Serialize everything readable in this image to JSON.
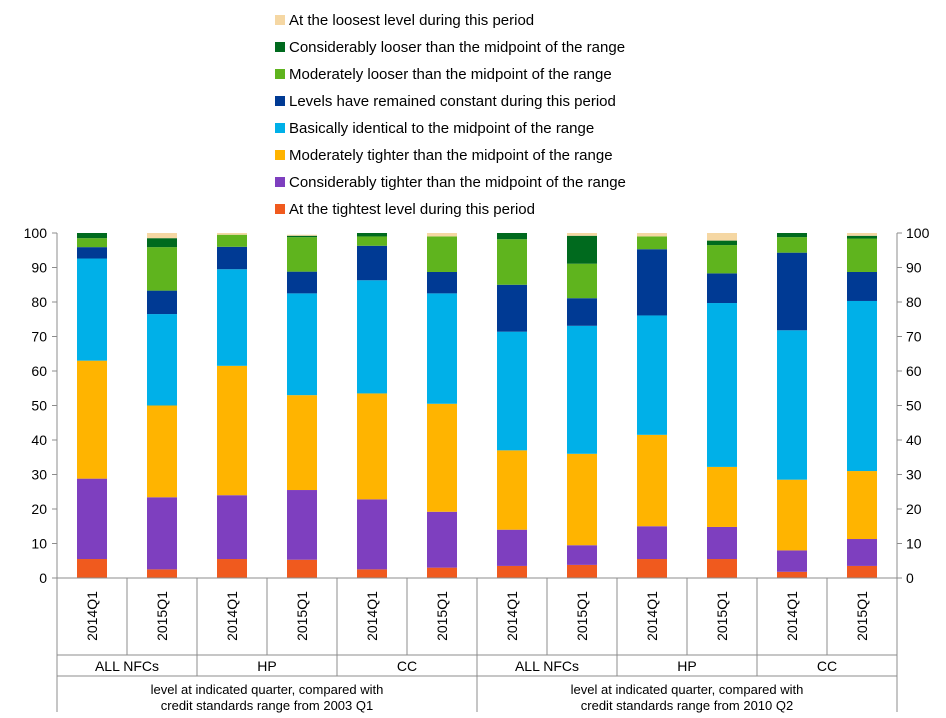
{
  "chart_data": {
    "type": "bar",
    "stacked": true,
    "ylim": [
      0,
      100
    ],
    "yticks": [
      0,
      10,
      20,
      30,
      40,
      50,
      60,
      70,
      80,
      90,
      100
    ],
    "secondary_y_axis": true,
    "grid": false,
    "legend_position": "top-center",
    "categories": [
      "2014Q1",
      "2015Q1",
      "2014Q1",
      "2015Q1",
      "2014Q1",
      "2015Q1",
      "2014Q1",
      "2015Q1",
      "2014Q1",
      "2015Q1",
      "2014Q1",
      "2015Q1"
    ],
    "subgroups": [
      {
        "label": "ALL NFCs",
        "span": 2
      },
      {
        "label": "HP",
        "span": 2
      },
      {
        "label": "CC",
        "span": 2
      },
      {
        "label": "ALL NFCs",
        "span": 2
      },
      {
        "label": "HP",
        "span": 2
      },
      {
        "label": "CC",
        "span": 2
      }
    ],
    "groups": [
      {
        "label_line1": "level at indicated quarter, compared with",
        "label_line2": "credit standards range from 2003 Q1",
        "span": 6
      },
      {
        "label_line1": "level at indicated quarter, compared with",
        "label_line2": "credit standards range from 2010 Q2",
        "span": 6
      }
    ],
    "series": [
      {
        "name": "At the tightest level during this period",
        "color": "#f05a1e",
        "values": [
          5.5,
          2.5,
          5.5,
          5.3,
          2.5,
          3.0,
          3.5,
          3.8,
          5.5,
          5.5,
          1.8,
          3.5
        ]
      },
      {
        "name": "Considerably tighter than the midpoint of the range",
        "color": "#7e3fbf",
        "values": [
          23.3,
          20.9,
          18.5,
          20.2,
          20.3,
          16.2,
          10.5,
          5.7,
          9.5,
          9.3,
          6.2,
          7.8
        ]
      },
      {
        "name": "Moderately tighter than the midpoint of the range",
        "color": "#ffb400",
        "values": [
          34.2,
          26.6,
          37.5,
          27.5,
          30.7,
          31.3,
          23.0,
          26.5,
          26.5,
          17.4,
          20.5,
          19.7
        ]
      },
      {
        "name": "Basically identical to the midpoint of the range",
        "color": "#00b0e8",
        "values": [
          29.6,
          26.5,
          28.0,
          29.5,
          32.8,
          32.0,
          34.4,
          37.1,
          34.6,
          47.5,
          43.3,
          49.3
        ]
      },
      {
        "name": "Levels have remained constant during this period",
        "color": "#003a94",
        "values": [
          3.3,
          6.8,
          6.5,
          6.3,
          10.0,
          6.2,
          13.6,
          8.0,
          19.2,
          8.6,
          22.5,
          8.4
        ]
      },
      {
        "name": "Moderately looser than the midpoint of the range",
        "color": "#5fb41e",
        "values": [
          2.6,
          12.6,
          3.5,
          10.0,
          2.7,
          10.3,
          13.2,
          10.0,
          3.7,
          8.2,
          4.5,
          9.7
        ]
      },
      {
        "name": "Considerably looser than the midpoint of the range",
        "color": "#006a1e",
        "values": [
          1.5,
          2.6,
          0.0,
          0.4,
          1.0,
          0.0,
          1.8,
          8.1,
          0.0,
          1.3,
          1.2,
          0.8
        ]
      },
      {
        "name": "At the loosest level during this period",
        "color": "#f5d7a3",
        "values": [
          0.0,
          1.5,
          0.5,
          0.3,
          0.0,
          1.0,
          0.0,
          0.8,
          1.0,
          2.2,
          0.0,
          0.8
        ]
      }
    ],
    "legend_order": [
      7,
      6,
      5,
      4,
      3,
      2,
      1,
      0
    ]
  }
}
